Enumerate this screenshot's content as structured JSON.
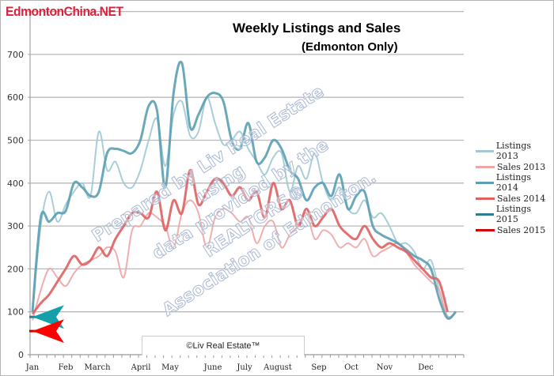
{
  "logo": "EdmontonChina.NET",
  "watermark": [
    "Prepared by Liv Real Estate",
    "using",
    "data provided by the",
    "REALTORS®",
    "Association of Edmonton."
  ],
  "footer": "©Liv Real Estate™",
  "chart_data": {
    "type": "line",
    "title": "Weekly Listings and Sales",
    "subtitle": "(Edmonton Only)",
    "xlabel": "",
    "ylabel": "",
    "ylim": [
      0,
      800
    ],
    "yticks": [
      0,
      100,
      200,
      300,
      400,
      500,
      600,
      700
    ],
    "xtick_labels": [
      "Jan",
      "Feb",
      "March",
      "April",
      "May",
      "June",
      "July",
      "August",
      "Sep",
      "Oct",
      "Nov",
      "Dec"
    ],
    "grid": true,
    "legend": "right",
    "series": [
      {
        "name": "Listings 2013",
        "color": "#9ec9d4",
        "values": [
          100,
          300,
          380,
          310,
          350,
          380,
          400,
          370,
          520,
          430,
          450,
          400,
          390,
          430,
          500,
          550,
          440,
          560,
          590,
          510,
          520,
          600,
          540,
          490,
          500,
          520,
          480,
          450,
          420,
          460,
          470,
          380,
          440,
          410,
          470,
          400,
          360,
          390,
          340,
          330,
          360,
          320,
          330,
          300,
          260,
          260,
          240,
          200,
          220,
          150,
          90,
          100
        ]
      },
      {
        "name": "Sales 2013",
        "color": "#f0a5a5",
        "values": [
          80,
          150,
          200,
          180,
          160,
          190,
          210,
          220,
          230,
          250,
          240,
          180,
          290,
          300,
          330,
          320,
          300,
          250,
          330,
          360,
          330,
          250,
          320,
          340,
          330,
          310,
          320,
          260,
          300,
          310,
          250,
          280,
          300,
          330,
          270,
          290,
          280,
          250,
          260,
          250,
          270,
          230,
          240,
          250,
          260,
          240,
          210,
          190,
          170,
          150,
          85,
          100
        ]
      },
      {
        "name": "Listings 2014",
        "color": "#5a9fb2",
        "values": [
          100,
          320,
          310,
          330,
          335,
          400,
          390,
          370,
          380,
          470,
          480,
          475,
          470,
          500,
          580,
          570,
          390,
          610,
          680,
          530,
          560,
          600,
          610,
          590,
          500,
          480,
          540,
          450,
          460,
          500,
          480,
          430,
          410,
          360,
          390,
          400,
          370,
          420,
          340,
          370,
          380,
          300,
          280,
          270,
          260,
          245,
          230,
          220,
          200,
          130,
          85,
          100
        ]
      },
      {
        "name": "Sales 2014",
        "color": "#e06060",
        "values": [
          95,
          120,
          140,
          170,
          200,
          230,
          210,
          220,
          250,
          230,
          270,
          300,
          330,
          330,
          320,
          380,
          290,
          360,
          330,
          430,
          350,
          380,
          410,
          400,
          370,
          390,
          360,
          380,
          320,
          400,
          340,
          360,
          300,
          340,
          300,
          320,
          340,
          300,
          280,
          270,
          300,
          270,
          250,
          260,
          250,
          240,
          220,
          200,
          180,
          170,
          100
        ]
      },
      {
        "name": "Listings 2015",
        "color": "#2f7d95",
        "values": [
          88
        ]
      },
      {
        "name": "Sales 2015",
        "color": "#cc0000",
        "values": [
          55
        ]
      }
    ]
  }
}
